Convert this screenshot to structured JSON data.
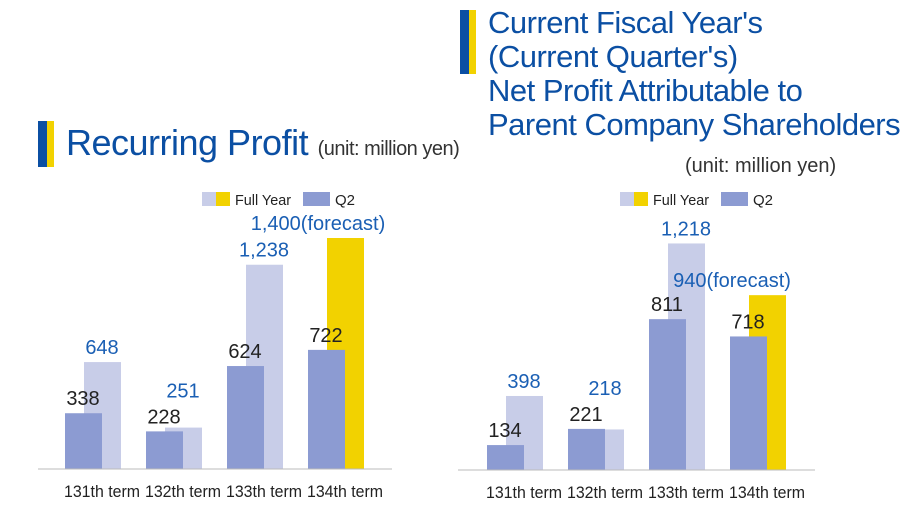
{
  "chart_data": [
    {
      "type": "bar",
      "title": "Recurring Profit",
      "unit": "(unit: million yen)",
      "categories": [
        "131th term",
        "132th term",
        "133th term",
        "134th term"
      ],
      "legend": [
        "Full Year",
        "Q2"
      ],
      "series": [
        {
          "name": "Q2",
          "values": [
            338,
            228,
            624,
            722
          ],
          "labels": [
            "338",
            "228",
            "624",
            "722"
          ]
        },
        {
          "name": "Full Year",
          "values": [
            648,
            251,
            1238,
            1400
          ],
          "labels": [
            "648",
            "251",
            "1,238",
            "1,400(forecast)"
          ],
          "forecast_index": 3
        }
      ]
    },
    {
      "type": "bar",
      "title": "Current Fiscal Year's (Current Quarter's) Net Profit Attributable to Parent Company Shareholders",
      "title_lines": [
        "Current Fiscal Year's",
        "(Current Quarter's)",
        "Net Profit Attributable to",
        "Parent Company Shareholders"
      ],
      "unit": "(unit: million yen)",
      "categories": [
        "131th term",
        "132th term",
        "133th term",
        "134th term"
      ],
      "legend": [
        "Full Year",
        "Q2"
      ],
      "series": [
        {
          "name": "Q2",
          "values": [
            134,
            221,
            811,
            718
          ],
          "labels": [
            "134",
            "221",
            "811",
            "718"
          ]
        },
        {
          "name": "Full Year",
          "values": [
            398,
            218,
            1218,
            940
          ],
          "labels": [
            "398",
            "218",
            "1,218",
            "940(forecast)"
          ],
          "forecast_index": 3
        }
      ]
    }
  ],
  "colors": {
    "title": "#0b4fa3",
    "q2": "#8c9bd2",
    "full_year": "#c8cde8",
    "forecast": "#f2d200",
    "full_label": "#1a5fb4",
    "q2_label": "#222222"
  }
}
